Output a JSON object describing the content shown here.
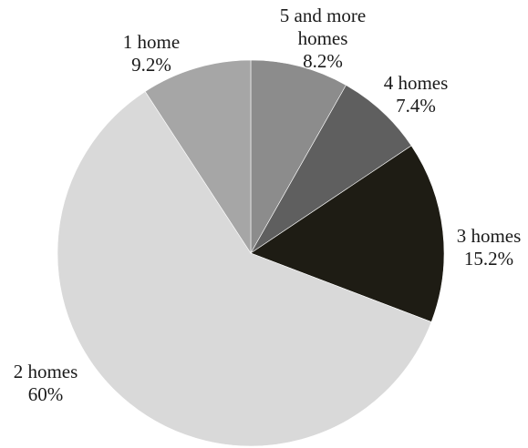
{
  "chart_data": {
    "type": "pie",
    "title": "",
    "start_angle_deg": 0,
    "direction": "clockwise",
    "slices": [
      {
        "label_lines": [
          "5 and more",
          "homes"
        ],
        "percent_label": "8.2%",
        "value": 8.2,
        "color": "#8c8c8c"
      },
      {
        "label_lines": [
          "4 homes"
        ],
        "percent_label": "7.4%",
        "value": 7.4,
        "color": "#5f5f5f"
      },
      {
        "label_lines": [
          "3 homes"
        ],
        "percent_label": "15.2%",
        "value": 15.2,
        "color": "#1e1c14"
      },
      {
        "label_lines": [
          "2 homes"
        ],
        "percent_label": "60%",
        "value": 60,
        "color": "#d9d9d9"
      },
      {
        "label_lines": [
          "1 home"
        ],
        "percent_label": "9.2%",
        "value": 9.2,
        "color": "#a6a6a6"
      }
    ]
  }
}
